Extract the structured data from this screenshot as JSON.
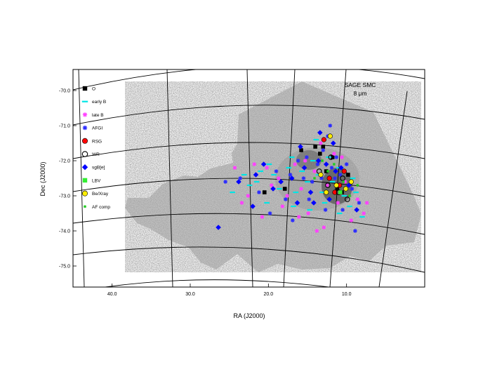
{
  "chart_data": {
    "type": "scatter",
    "title": "SAGE SMC",
    "subtitle": "8 μm",
    "xlabel": "RA (J2000)",
    "ylabel": "Dec (J2000)",
    "x_direction": "reversed",
    "xlim": [
      0.0,
      45.0
    ],
    "ylim": [
      -75.6,
      -69.4
    ],
    "x_ticks": [
      "40.0",
      "30.0",
      "20.0",
      "10.0"
    ],
    "x_tick_values": [
      40.0,
      30.0,
      20.0,
      10.0
    ],
    "y_ticks": [
      "-70.0",
      "-71.0",
      "-72.0",
      "-73.0",
      "-74.0",
      "-75.0"
    ],
    "y_tick_values": [
      -70.0,
      -71.0,
      -72.0,
      -73.0,
      -74.0,
      -75.0
    ],
    "background": "grayscale 8 micron image of the Small Magellanic Cloud with RA/Dec coordinate grid",
    "grid": true,
    "legend_position": "top-left",
    "legend": [
      {
        "label": "O",
        "marker": "square",
        "color": "#000000"
      },
      {
        "label": "early B",
        "marker": "line",
        "color": "#00e5e5"
      },
      {
        "label": "late B",
        "marker": "asterisk",
        "color": "#ff40ff"
      },
      {
        "label": "AFGI",
        "marker": "asterisk",
        "color": "#2a2aff"
      },
      {
        "label": "RSG",
        "marker": "circle-filled",
        "color": "#ff0000"
      },
      {
        "label": "WR",
        "marker": "circle-open",
        "color": "#000000"
      },
      {
        "label": "sgB[e]",
        "marker": "diamond",
        "color": "#0000ff"
      },
      {
        "label": "LBV",
        "marker": "square",
        "color": "#33ee33"
      },
      {
        "label": "Be/Xray",
        "marker": "circle-filled",
        "color": "#ffee00"
      },
      {
        "label": "AF comp",
        "marker": "star-small",
        "color": "#22cc22"
      }
    ],
    "series": [
      {
        "name": "O",
        "points": [
          [
            12.6,
            -72.3
          ],
          [
            13.0,
            -71.6
          ],
          [
            11.2,
            -72.8
          ],
          [
            10.6,
            -72.9
          ],
          [
            14.0,
            -71.6
          ],
          [
            15.8,
            -71.7
          ],
          [
            17.9,
            -72.8
          ],
          [
            20.5,
            -72.9
          ],
          [
            13.4,
            -71.8
          ],
          [
            9.8,
            -72.4
          ],
          [
            11.8,
            -71.9
          ]
        ]
      },
      {
        "name": "early B",
        "points": [
          [
            24.6,
            -72.9
          ],
          [
            23.1,
            -72.4
          ],
          [
            21.5,
            -72.6
          ],
          [
            20.2,
            -73.2
          ],
          [
            19.3,
            -72.4
          ],
          [
            18.6,
            -72.8
          ],
          [
            17.4,
            -72.2
          ],
          [
            16.5,
            -72.9
          ],
          [
            15.7,
            -72.3
          ],
          [
            15.0,
            -72.6
          ],
          [
            14.3,
            -72.0
          ],
          [
            13.6,
            -72.4
          ],
          [
            13.1,
            -72.9
          ],
          [
            12.3,
            -71.9
          ],
          [
            11.8,
            -72.6
          ],
          [
            11.0,
            -72.2
          ],
          [
            10.3,
            -73.0
          ],
          [
            9.6,
            -73.3
          ],
          [
            8.8,
            -72.9
          ],
          [
            8.0,
            -73.6
          ],
          [
            12.8,
            -73.2
          ],
          [
            14.7,
            -73.4
          ],
          [
            16.8,
            -73.3
          ],
          [
            19.9,
            -72.1
          ],
          [
            22.4,
            -72.7
          ],
          [
            10.9,
            -73.5
          ],
          [
            13.9,
            -71.4
          ],
          [
            17.0,
            -71.9
          ],
          [
            21.0,
            -72.3
          ],
          [
            9.2,
            -72.5
          ]
        ]
      },
      {
        "name": "late B",
        "points": [
          [
            24.3,
            -72.2
          ],
          [
            22.6,
            -73.0
          ],
          [
            21.8,
            -72.1
          ],
          [
            20.8,
            -73.6
          ],
          [
            19.6,
            -72.7
          ],
          [
            18.7,
            -72.5
          ],
          [
            17.6,
            -73.0
          ],
          [
            16.6,
            -72.1
          ],
          [
            15.8,
            -72.8
          ],
          [
            14.9,
            -73.5
          ],
          [
            14.1,
            -72.3
          ],
          [
            13.3,
            -71.5
          ],
          [
            12.5,
            -72.7
          ],
          [
            11.6,
            -71.8
          ],
          [
            11.1,
            -73.2
          ],
          [
            10.2,
            -72.6
          ],
          [
            9.4,
            -73.7
          ],
          [
            8.6,
            -73.1
          ],
          [
            7.8,
            -73.5
          ],
          [
            12.9,
            -73.9
          ],
          [
            16.1,
            -73.6
          ],
          [
            18.2,
            -73.3
          ],
          [
            20.2,
            -72.2
          ],
          [
            23.4,
            -73.2
          ],
          [
            10.6,
            -71.9
          ],
          [
            7.4,
            -73.2
          ],
          [
            13.8,
            -74.0
          ],
          [
            15.3,
            -72.0
          ]
        ]
      },
      {
        "name": "AFGI",
        "points": [
          [
            25.5,
            -72.6
          ],
          [
            23.6,
            -72.5
          ],
          [
            21.2,
            -72.9
          ],
          [
            19.0,
            -72.3
          ],
          [
            17.2,
            -72.4
          ],
          [
            16.2,
            -72.0
          ],
          [
            15.1,
            -71.9
          ],
          [
            14.4,
            -72.6
          ],
          [
            13.7,
            -72.1
          ],
          [
            13.0,
            -71.7
          ],
          [
            12.4,
            -71.3
          ],
          [
            11.9,
            -72.2
          ],
          [
            11.3,
            -71.9
          ],
          [
            10.8,
            -72.4
          ],
          [
            10.0,
            -72.1
          ],
          [
            9.3,
            -72.8
          ],
          [
            8.4,
            -73.2
          ],
          [
            12.1,
            -71.0
          ],
          [
            14.8,
            -73.1
          ],
          [
            17.8,
            -73.1
          ],
          [
            19.8,
            -73.5
          ],
          [
            16.9,
            -73.7
          ],
          [
            12.7,
            -73.4
          ],
          [
            10.5,
            -73.4
          ],
          [
            8.9,
            -74.0
          ],
          [
            15.5,
            -72.5
          ],
          [
            13.2,
            -72.5
          ],
          [
            11.5,
            -72.5
          ]
        ]
      },
      {
        "name": "RSG",
        "points": [
          [
            12.2,
            -72.5
          ],
          [
            10.9,
            -72.7
          ],
          [
            12.9,
            -71.4
          ],
          [
            11.5,
            -72.9
          ],
          [
            10.3,
            -72.3
          ]
        ]
      },
      {
        "name": "WR",
        "points": [
          [
            12.0,
            -71.9
          ],
          [
            11.0,
            -72.9
          ],
          [
            10.5,
            -72.5
          ],
          [
            13.5,
            -72.3
          ],
          [
            12.4,
            -72.7
          ],
          [
            9.9,
            -73.1
          ]
        ]
      },
      {
        "name": "sgB[e]",
        "points": [
          [
            26.4,
            -73.9
          ],
          [
            23.8,
            -72.6
          ],
          [
            22.0,
            -73.3
          ],
          [
            20.6,
            -72.1
          ],
          [
            18.4,
            -72.6
          ],
          [
            16.3,
            -73.2
          ],
          [
            15.4,
            -72.2
          ],
          [
            14.6,
            -72.9
          ],
          [
            13.6,
            -72.0
          ],
          [
            12.6,
            -72.1
          ],
          [
            11.4,
            -72.3
          ],
          [
            10.7,
            -72.2
          ],
          [
            9.7,
            -72.7
          ],
          [
            8.7,
            -73.4
          ],
          [
            12.2,
            -73.1
          ],
          [
            14.2,
            -73.2
          ],
          [
            17.0,
            -72.5
          ],
          [
            19.4,
            -72.8
          ],
          [
            21.6,
            -72.4
          ],
          [
            13.4,
            -71.2
          ],
          [
            11.7,
            -71.5
          ],
          [
            15.9,
            -71.6
          ]
        ]
      },
      {
        "name": "LBV",
        "points": [
          [
            10.8,
            -72.9
          ]
        ]
      },
      {
        "name": "Be/Xray",
        "points": [
          [
            12.1,
            -71.3
          ],
          [
            11.3,
            -72.7
          ],
          [
            10.1,
            -72.8
          ],
          [
            13.3,
            -72.4
          ],
          [
            12.6,
            -72.9
          ],
          [
            9.4,
            -72.6
          ]
        ]
      },
      {
        "name": "AF comp",
        "points": [
          [
            12.4,
            -72.3
          ],
          [
            11.6,
            -72.1
          ],
          [
            10.4,
            -72.6
          ],
          [
            13.1,
            -72.0
          ],
          [
            9.6,
            -73.0
          ],
          [
            14.1,
            -72.5
          ],
          [
            8.6,
            -72.7
          ]
        ]
      }
    ]
  }
}
